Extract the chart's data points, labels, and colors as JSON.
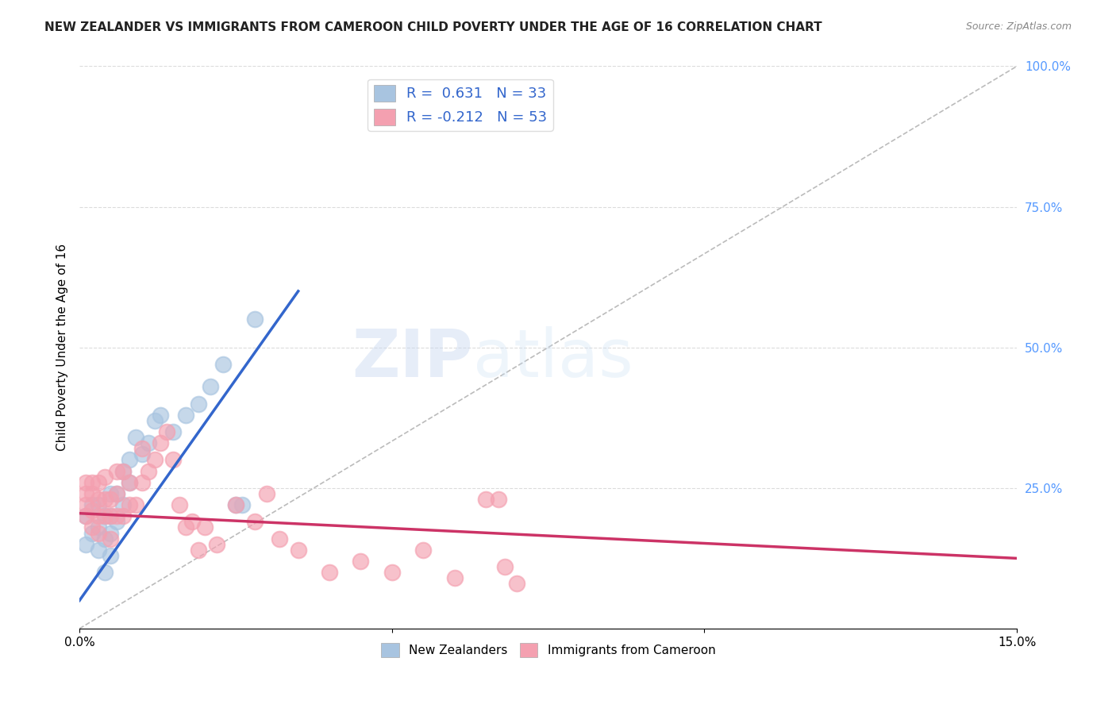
{
  "title": "NEW ZEALANDER VS IMMIGRANTS FROM CAMEROON CHILD POVERTY UNDER THE AGE OF 16 CORRELATION CHART",
  "source": "Source: ZipAtlas.com",
  "ylabel": "Child Poverty Under the Age of 16",
  "xmin": 0.0,
  "xmax": 0.15,
  "ymin": 0.0,
  "ymax": 1.0,
  "yticks": [
    0.0,
    0.25,
    0.5,
    0.75,
    1.0
  ],
  "ytick_labels": [
    "",
    "25.0%",
    "50.0%",
    "75.0%",
    "100.0%"
  ],
  "xticks": [
    0.0,
    0.05,
    0.1,
    0.15
  ],
  "xtick_labels": [
    "0.0%",
    "",
    "",
    "15.0%"
  ],
  "blue_R": 0.631,
  "blue_N": 33,
  "pink_R": -0.212,
  "pink_N": 53,
  "blue_color": "#a8c4e0",
  "pink_color": "#f4a0b0",
  "blue_line_color": "#3366cc",
  "pink_line_color": "#cc3366",
  "blue_scatter_x": [
    0.001,
    0.001,
    0.002,
    0.002,
    0.003,
    0.003,
    0.003,
    0.004,
    0.004,
    0.004,
    0.005,
    0.005,
    0.005,
    0.005,
    0.006,
    0.006,
    0.007,
    0.007,
    0.008,
    0.008,
    0.009,
    0.01,
    0.011,
    0.012,
    0.013,
    0.015,
    0.017,
    0.019,
    0.021,
    0.023,
    0.025,
    0.026,
    0.028
  ],
  "blue_scatter_y": [
    0.15,
    0.2,
    0.17,
    0.22,
    0.14,
    0.18,
    0.22,
    0.1,
    0.16,
    0.2,
    0.13,
    0.17,
    0.2,
    0.24,
    0.19,
    0.24,
    0.22,
    0.28,
    0.26,
    0.3,
    0.34,
    0.31,
    0.33,
    0.37,
    0.38,
    0.35,
    0.38,
    0.4,
    0.43,
    0.47,
    0.22,
    0.22,
    0.55
  ],
  "pink_scatter_x": [
    0.001,
    0.001,
    0.001,
    0.001,
    0.002,
    0.002,
    0.002,
    0.002,
    0.003,
    0.003,
    0.003,
    0.003,
    0.004,
    0.004,
    0.004,
    0.005,
    0.005,
    0.005,
    0.006,
    0.006,
    0.006,
    0.007,
    0.007,
    0.008,
    0.008,
    0.009,
    0.01,
    0.01,
    0.011,
    0.012,
    0.013,
    0.014,
    0.015,
    0.016,
    0.017,
    0.018,
    0.019,
    0.02,
    0.022,
    0.025,
    0.028,
    0.03,
    0.032,
    0.035,
    0.04,
    0.045,
    0.05,
    0.055,
    0.06,
    0.065,
    0.067,
    0.068,
    0.07
  ],
  "pink_scatter_y": [
    0.2,
    0.22,
    0.24,
    0.26,
    0.18,
    0.21,
    0.24,
    0.26,
    0.17,
    0.2,
    0.23,
    0.26,
    0.2,
    0.23,
    0.27,
    0.16,
    0.2,
    0.23,
    0.2,
    0.24,
    0.28,
    0.2,
    0.28,
    0.22,
    0.26,
    0.22,
    0.32,
    0.26,
    0.28,
    0.3,
    0.33,
    0.35,
    0.3,
    0.22,
    0.18,
    0.19,
    0.14,
    0.18,
    0.15,
    0.22,
    0.19,
    0.24,
    0.16,
    0.14,
    0.1,
    0.12,
    0.1,
    0.14,
    0.09,
    0.23,
    0.23,
    0.11,
    0.08
  ],
  "blue_line_x0": 0.0,
  "blue_line_y0": 0.05,
  "blue_line_x1": 0.035,
  "blue_line_y1": 0.6,
  "pink_line_x0": 0.0,
  "pink_line_y0": 0.205,
  "pink_line_x1": 0.15,
  "pink_line_y1": 0.125,
  "ref_line_x0": 0.0,
  "ref_line_y0": 0.0,
  "ref_line_x1": 0.15,
  "ref_line_y1": 1.0,
  "watermark_zip": "ZIP",
  "watermark_atlas": "atlas",
  "background_color": "#ffffff",
  "grid_color": "#cccccc",
  "title_fontsize": 11,
  "axis_label_fontsize": 11,
  "tick_fontsize": 11,
  "legend_blue_label": "New Zealanders",
  "legend_pink_label": "Immigrants from Cameroon"
}
